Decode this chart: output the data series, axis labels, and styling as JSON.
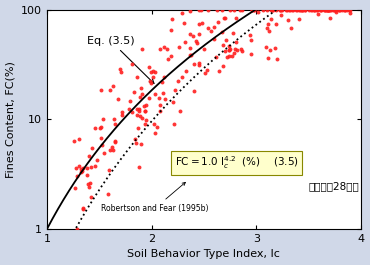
{
  "title": "",
  "xlabel": "Soil Behavior Type Index, Ic",
  "ylabel": "Fines Content, FC(%)",
  "xlim": [
    1,
    4
  ],
  "ylim": [
    1,
    100
  ],
  "bg_color": "#d0d8e8",
  "plot_bg": "#ffffff",
  "scatter_color": "#ff2020",
  "scatter_size": 8,
  "eq_label": "Eq. (3.5)",
  "robertson_label": "Robertson and Fear (1995b)",
  "data_label": "データ：28地点",
  "seed": 42
}
